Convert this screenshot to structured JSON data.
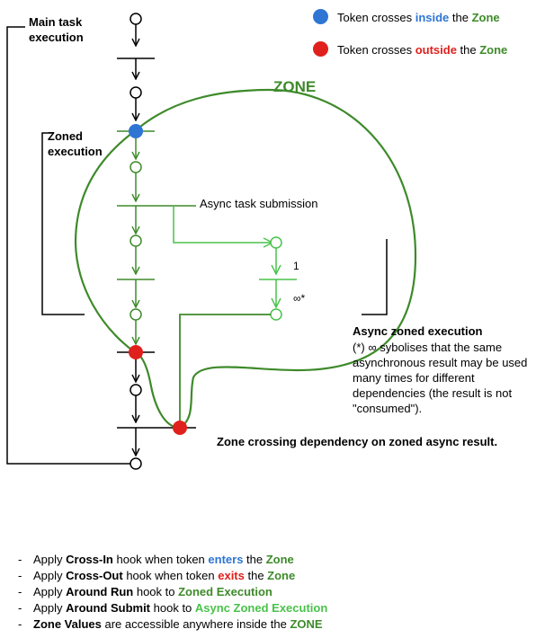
{
  "labels": {
    "main_task": "Main task execution",
    "zoned_execution": "Zoned execution",
    "zone_title": "ZONE",
    "async_submission": "Async task submission",
    "count_one": "1",
    "count_inf": "∞*",
    "async_zoned_title": "Async zoned execution",
    "async_note": "(*) ∞ sybolises that the same asynchronous result may be used many times for different dependencies (the result is not \"consumed\").",
    "crossing_dependency": "Zone crossing dependency on zoned async result."
  },
  "legend": [
    {
      "color": "#2e75d4",
      "pre": "Token crosses ",
      "key": "inside",
      "mid": " the ",
      "zone": "Zone"
    },
    {
      "color": "#e0201c",
      "pre": "Token crosses ",
      "key": "outside",
      "mid": " the ",
      "zone": "Zone"
    }
  ],
  "bullets": [
    {
      "a": "Apply ",
      "b": "Cross-In",
      "c": " hook when token ",
      "d": "enters",
      "e": " the ",
      "f": "Zone"
    },
    {
      "a": "Apply ",
      "b": "Cross-Out",
      "c": " hook when token ",
      "d": "exits",
      "e": " the ",
      "f": "Zone"
    },
    {
      "a": "Apply ",
      "b": "Around Run",
      "c": " hook to ",
      "d": "Zoned Execution"
    },
    {
      "a": "Apply ",
      "b": "Around Submit",
      "c": " hook to ",
      "d": "Async Zoned Execution"
    },
    {
      "a": "Zone Values",
      "b": " are accessible anywhere inside the ",
      "c": "ZONE"
    }
  ],
  "colors": {
    "zone_green": "#3e8a2a",
    "light_green": "#49c24a",
    "inside_blue": "#2e75d4",
    "outside_red": "#e0201c"
  }
}
